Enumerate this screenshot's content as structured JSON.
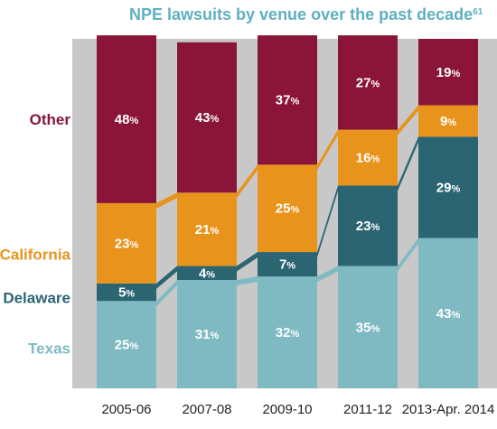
{
  "chart_data": {
    "type": "bar",
    "stacked": true,
    "title": "NPE lawsuits by venue over the past decade",
    "title_footnote": "61",
    "unit": "%",
    "categories": [
      "2005-06",
      "2007-08",
      "2009-10",
      "2011-12",
      "2013-Apr. 2014"
    ],
    "series": [
      {
        "name": "Texas",
        "values": [
          25,
          31,
          32,
          35,
          43
        ],
        "color": "#7fbac3"
      },
      {
        "name": "Delaware",
        "values": [
          5,
          4,
          7,
          23,
          29
        ],
        "color": "#2b6572"
      },
      {
        "name": "California",
        "values": [
          23,
          21,
          25,
          16,
          9
        ],
        "color": "#e8941c"
      },
      {
        "name": "Other",
        "values": [
          48,
          43,
          37,
          27,
          19
        ],
        "color": "#8a1538"
      }
    ],
    "legend_position": "left",
    "ylim": [
      0,
      100
    ],
    "grid": false,
    "background_color": "#c8c8c8"
  }
}
